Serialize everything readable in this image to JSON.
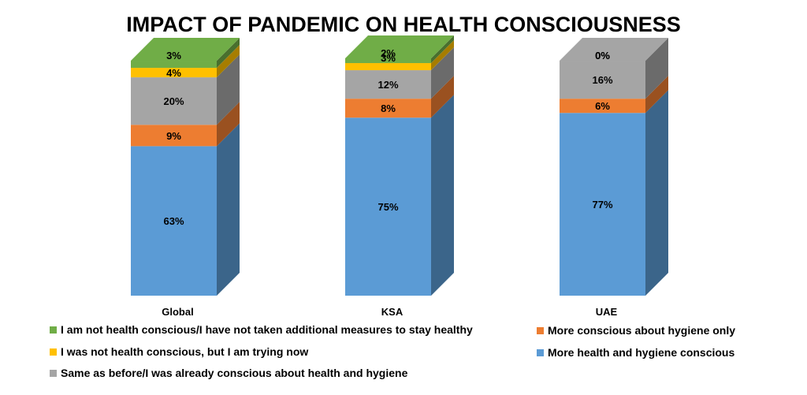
{
  "chart_data": {
    "type": "bar",
    "stacked": true,
    "three_d": true,
    "title": "IMPACT OF PANDEMIC ON HEALTH CONSCIOUSNESS",
    "categories": [
      "Global",
      "KSA",
      "UAE"
    ],
    "ylim": [
      0,
      100
    ],
    "grid": false,
    "legend_position": "bottom",
    "series": [
      {
        "name": "More health and hygiene conscious",
        "color": "#5B9BD5",
        "values": [
          63,
          75,
          77
        ],
        "labels": [
          "63%",
          "75%",
          "77%"
        ]
      },
      {
        "name": "More conscious about hygiene only",
        "color": "#ED7D31",
        "values": [
          9,
          8,
          6
        ],
        "labels": [
          "9%",
          "8%",
          "6%"
        ]
      },
      {
        "name": "Same as before/I was already conscious about health and hygiene",
        "color": "#A5A5A5",
        "values": [
          20,
          12,
          16
        ],
        "labels": [
          "20%",
          "12%",
          "16%"
        ]
      },
      {
        "name": "I was not health conscious, but I am trying now",
        "color": "#FFC000",
        "values": [
          4,
          3,
          0
        ],
        "labels": [
          "4%",
          "3%",
          "0%"
        ]
      },
      {
        "name": "I am not health conscious/I have not taken additional measures to stay healthy",
        "color": "#70AD47",
        "values": [
          3,
          2,
          0
        ],
        "labels": [
          "3%",
          "2%",
          "0%"
        ]
      }
    ],
    "legend_order": [
      4,
      1,
      3,
      0,
      2
    ]
  }
}
